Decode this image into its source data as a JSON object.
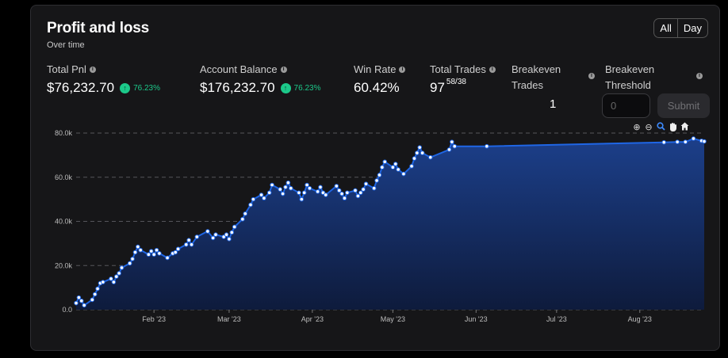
{
  "header": {
    "title": "Profit and loss",
    "subtitle": "Over time"
  },
  "range_toggle": {
    "all": "All",
    "day": "Day",
    "selected": "All"
  },
  "stats": {
    "total_pnl": {
      "label": "Total Pnl",
      "value": "$76,232.70",
      "change": "76.23%"
    },
    "account_balance": {
      "label": "Account Balance",
      "value": "$176,232.70",
      "change": "76.23%"
    },
    "win_rate": {
      "label": "Win Rate",
      "value": "60.42%"
    },
    "total_trades": {
      "label": "Total Trades",
      "value": "97",
      "detail": "58/38"
    },
    "breakeven_trades": {
      "label_line1": "Breakeven",
      "label_line2": "Trades",
      "value": "1"
    },
    "breakeven_threshold": {
      "label_line1": "Breakeven",
      "label_line2": "Threshold",
      "placeholder": "0",
      "submit": "Submit"
    }
  },
  "toolbar": {
    "zoom_in": "⊕",
    "zoom_out": "⊖",
    "zoom": "🔍",
    "pan": "✋",
    "reset": "⌂"
  },
  "colors": {
    "line": "#1f66e5",
    "area_top": "#1c3f8a",
    "area_bottom": "#0e1b3c",
    "positive": "#1cc98a"
  },
  "chart_data": {
    "type": "area",
    "title": "",
    "xlabel": "",
    "ylabel": "",
    "ylim": [
      0,
      80000
    ],
    "y_ticks": [
      "0.0",
      "20.0k",
      "40.0k",
      "60.0k",
      "80.0k"
    ],
    "x_ticks": [
      "Feb '23",
      "Mar '23",
      "Apr '23",
      "May '23",
      "Jun '23",
      "Jul '23",
      "Aug '23"
    ],
    "grid": true,
    "series": [
      {
        "points": [
          [
            "2023-01-03",
            3000
          ],
          [
            "2023-01-04",
            5500
          ],
          [
            "2023-01-05",
            4000
          ],
          [
            "2023-01-06",
            2000
          ],
          [
            "2023-01-09",
            4500
          ],
          [
            "2023-01-10",
            7000
          ],
          [
            "2023-01-11",
            9500
          ],
          [
            "2023-01-12",
            12000
          ],
          [
            "2023-01-13",
            12500
          ],
          [
            "2023-01-16",
            14000
          ],
          [
            "2023-01-17",
            12500
          ],
          [
            "2023-01-18",
            15000
          ],
          [
            "2023-01-19",
            16500
          ],
          [
            "2023-01-20",
            19000
          ],
          [
            "2023-01-23",
            21000
          ],
          [
            "2023-01-24",
            23000
          ],
          [
            "2023-01-25",
            26000
          ],
          [
            "2023-01-26",
            28500
          ],
          [
            "2023-01-27",
            27000
          ],
          [
            "2023-01-30",
            25000
          ],
          [
            "2023-01-31",
            26500
          ],
          [
            "2023-02-01",
            25000
          ],
          [
            "2023-02-02",
            27000
          ],
          [
            "2023-02-03",
            25500
          ],
          [
            "2023-02-06",
            23500
          ],
          [
            "2023-02-08",
            25500
          ],
          [
            "2023-02-09",
            26000
          ],
          [
            "2023-02-10",
            27500
          ],
          [
            "2023-02-13",
            29500
          ],
          [
            "2023-02-14",
            31500
          ],
          [
            "2023-02-15",
            29500
          ],
          [
            "2023-02-17",
            33000
          ],
          [
            "2023-02-21",
            35500
          ],
          [
            "2023-02-23",
            32500
          ],
          [
            "2023-02-24",
            34000
          ],
          [
            "2023-02-27",
            33000
          ],
          [
            "2023-02-28",
            34000
          ],
          [
            "2023-03-01",
            32000
          ],
          [
            "2023-03-02",
            35000
          ],
          [
            "2023-03-03",
            37500
          ],
          [
            "2023-03-06",
            41000
          ],
          [
            "2023-03-07",
            43500
          ],
          [
            "2023-03-09",
            47500
          ],
          [
            "2023-03-10",
            50000
          ],
          [
            "2023-03-13",
            52000
          ],
          [
            "2023-03-14",
            50500
          ],
          [
            "2023-03-16",
            53000
          ],
          [
            "2023-03-17",
            56500
          ],
          [
            "2023-03-20",
            54500
          ],
          [
            "2023-03-21",
            52500
          ],
          [
            "2023-03-22",
            55500
          ],
          [
            "2023-03-23",
            57500
          ],
          [
            "2023-03-24",
            55000
          ],
          [
            "2023-03-27",
            53000
          ],
          [
            "2023-03-28",
            50000
          ],
          [
            "2023-03-29",
            53000
          ],
          [
            "2023-03-30",
            56500
          ],
          [
            "2023-03-31",
            55000
          ],
          [
            "2023-04-03",
            53500
          ],
          [
            "2023-04-04",
            55500
          ],
          [
            "2023-04-05",
            53000
          ],
          [
            "2023-04-06",
            52000
          ],
          [
            "2023-04-10",
            56000
          ],
          [
            "2023-04-11",
            54000
          ],
          [
            "2023-04-12",
            52500
          ],
          [
            "2023-04-13",
            50500
          ],
          [
            "2023-04-14",
            53000
          ],
          [
            "2023-04-17",
            54000
          ],
          [
            "2023-04-18",
            51500
          ],
          [
            "2023-04-19",
            53000
          ],
          [
            "2023-04-20",
            54500
          ],
          [
            "2023-04-21",
            57000
          ],
          [
            "2023-04-24",
            55000
          ],
          [
            "2023-04-25",
            58500
          ],
          [
            "2023-04-26",
            61000
          ],
          [
            "2023-04-27",
            64500
          ],
          [
            "2023-04-28",
            67000
          ],
          [
            "2023-05-01",
            64500
          ],
          [
            "2023-05-02",
            66000
          ],
          [
            "2023-05-03",
            63500
          ],
          [
            "2023-05-05",
            61500
          ],
          [
            "2023-05-08",
            65000
          ],
          [
            "2023-05-09",
            68500
          ],
          [
            "2023-05-10",
            71000
          ],
          [
            "2023-05-11",
            73500
          ],
          [
            "2023-05-12",
            71000
          ],
          [
            "2023-05-15",
            69000
          ],
          [
            "2023-05-22",
            72500
          ],
          [
            "2023-05-23",
            76000
          ],
          [
            "2023-05-24",
            74000
          ],
          [
            "2023-06-05",
            74000
          ],
          [
            "2023-08-10",
            75800
          ],
          [
            "2023-08-15",
            76000
          ],
          [
            "2023-08-18",
            76000
          ],
          [
            "2023-08-21",
            77500
          ],
          [
            "2023-08-24",
            76500
          ],
          [
            "2023-08-25",
            76232.7
          ]
        ]
      }
    ]
  }
}
